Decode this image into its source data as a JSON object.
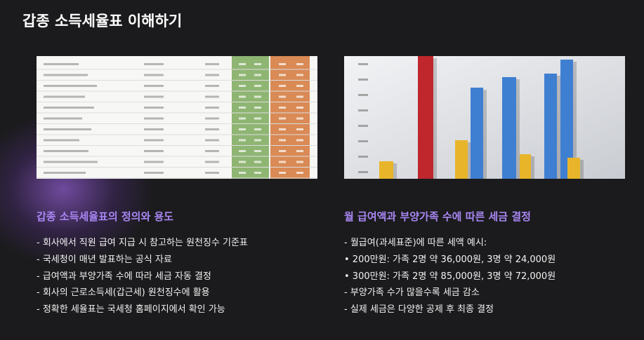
{
  "title": "갑종 소득세율표 이해하기",
  "sections": [
    {
      "heading": "갑종 소득세율표의 정의와 용도",
      "items": [
        "- 회사에서 직원 급여 지급 시 참고하는 원천징수 기준표",
        "- 국세청이 매년 발표하는 공식 자료",
        "- 급여액과 부양가족 수에 따라 세금 자동 결정",
        "- 회사의 근로소득세(갑근세) 원천징수에 활용",
        "- 정확한 세율표는 국세청 홈페이지에서 확인 가능"
      ]
    },
    {
      "heading": "월 급여액과 부양가족 수에 따른 세금 결정",
      "items": [
        "- 월급여(과세표준)에 따른 세액 예시:",
        "• 200만원: 가족 2명 약 36,000원, 3명 약 24,000원",
        "• 300만원: 가족 2명 약 85,000원, 3명 약 72,000원",
        "- 부양가족 수가 많을수록 세금 감소",
        "- 실제 세금은 다양한 공제 후 최종 결정"
      ]
    }
  ]
}
